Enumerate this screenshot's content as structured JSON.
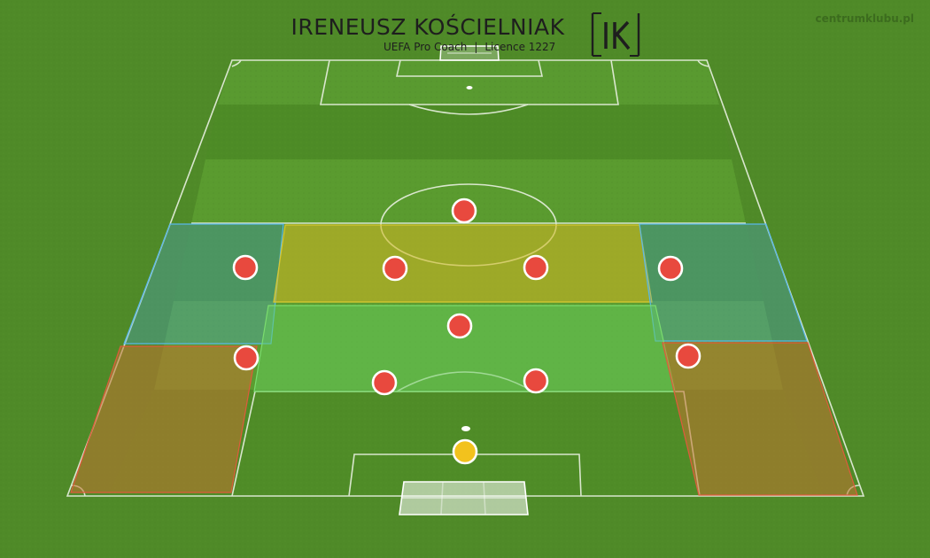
{
  "header": {
    "name": "IRENEUSZ KOŚCIELNIAK",
    "role": "UEFA Pro Coach",
    "separator": "|",
    "licence": "Licence 1227",
    "logo_text": "IK",
    "site": "centrumklubu.pl"
  },
  "colors": {
    "grass_light": "#5a9a2e",
    "grass_dark": "#4c8a25",
    "line": "#e8f0e0",
    "zone_blue": "#4aa8d8",
    "zone_yellow": "#c7b52a",
    "zone_green": "#5fc05a",
    "zone_orange": "#c2722f",
    "player_red": "#e8493e",
    "goalkeeper_yellow": "#f2c21d"
  },
  "zones": [
    {
      "id": "left-wing-zone",
      "color": "blue"
    },
    {
      "id": "central-midfield-zone",
      "color": "yellow"
    },
    {
      "id": "right-wing-zone",
      "color": "blue"
    },
    {
      "id": "defensive-midfield-zone",
      "color": "green"
    },
    {
      "id": "left-back-zone",
      "color": "orange"
    },
    {
      "id": "right-back-zone",
      "color": "orange"
    }
  ],
  "players": [
    {
      "id": "striker",
      "type": "outfield"
    },
    {
      "id": "left-winger",
      "type": "outfield"
    },
    {
      "id": "left-central-midfielder",
      "type": "outfield"
    },
    {
      "id": "right-central-midfielder",
      "type": "outfield"
    },
    {
      "id": "right-winger",
      "type": "outfield"
    },
    {
      "id": "defensive-midfielder",
      "type": "outfield"
    },
    {
      "id": "left-back",
      "type": "outfield"
    },
    {
      "id": "right-back",
      "type": "outfield"
    },
    {
      "id": "left-centre-back",
      "type": "outfield"
    },
    {
      "id": "right-centre-back",
      "type": "outfield"
    },
    {
      "id": "goalkeeper",
      "type": "goalkeeper"
    }
  ]
}
